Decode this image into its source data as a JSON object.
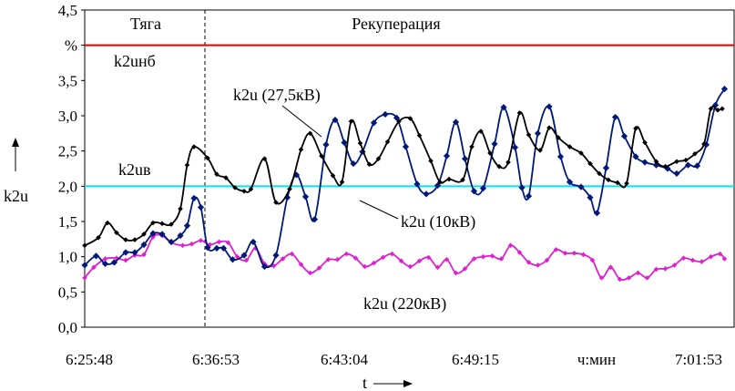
{
  "chart_data": {
    "type": "line",
    "ylabel": "k2u",
    "xlabel": "t",
    "ylim": [
      0,
      4.5
    ],
    "y_ticks": [
      "0,0",
      "0,5",
      "1,0",
      "1,5",
      "2,0",
      "2,5",
      "3,0",
      "3,5",
      "%",
      "4,5"
    ],
    "x_tick_labels": [
      "6:25:48",
      "6:36:53",
      "6:43:04",
      "6:49:15",
      "ч:мин",
      "7:01:53"
    ],
    "grid": false,
    "regions": [
      {
        "label": "Тяга"
      },
      {
        "label": "Рекуперация"
      }
    ],
    "thresholds": [
      {
        "label": "k2uнб",
        "value": 4.0,
        "color": "#e00000"
      },
      {
        "label": "k2uв",
        "value": 2.0,
        "color": "#00e5ee"
      }
    ],
    "series": [
      {
        "name": "k2u (27,5кВ)",
        "color": "#000000",
        "values": [
          [
            0.0,
            1.16
          ],
          [
            0.03,
            1.27
          ],
          [
            0.05,
            1.48
          ],
          [
            0.07,
            1.34
          ],
          [
            0.09,
            1.24
          ],
          [
            0.11,
            1.24
          ],
          [
            0.13,
            1.32
          ],
          [
            0.15,
            1.48
          ],
          [
            0.17,
            1.47
          ],
          [
            0.19,
            1.46
          ],
          [
            0.21,
            1.68
          ],
          [
            0.225,
            2.3
          ],
          [
            0.24,
            2.56
          ],
          [
            0.27,
            2.4
          ],
          [
            0.29,
            2.17
          ],
          [
            0.31,
            2.12
          ],
          [
            0.33,
            1.98
          ],
          [
            0.35,
            1.93
          ],
          [
            0.365,
            1.96
          ],
          [
            0.395,
            2.39
          ],
          [
            0.42,
            1.77
          ],
          [
            0.45,
            1.96
          ],
          [
            0.475,
            2.52
          ],
          [
            0.495,
            2.75
          ],
          [
            0.52,
            2.43
          ],
          [
            0.545,
            2.15
          ],
          [
            0.565,
            2.06
          ],
          [
            0.585,
            2.92
          ],
          [
            0.605,
            2.61
          ],
          [
            0.625,
            2.31
          ],
          [
            0.645,
            2.39
          ],
          [
            0.665,
            2.63
          ],
          [
            0.69,
            2.92
          ],
          [
            0.715,
            2.96
          ],
          [
            0.735,
            2.72
          ],
          [
            0.76,
            2.36
          ],
          [
            0.78,
            2.06
          ],
          [
            0.8,
            2.1
          ],
          [
            0.83,
            2.09
          ],
          [
            0.85,
            2.56
          ],
          [
            0.87,
            2.78
          ],
          [
            0.89,
            2.47
          ],
          [
            0.91,
            2.28
          ],
          [
            0.93,
            2.34
          ],
          [
            0.955,
            3.04
          ],
          [
            0.975,
            2.73
          ],
          [
            1.0,
            2.51
          ],
          [
            1.02,
            2.83
          ],
          [
            1.04,
            2.69
          ],
          [
            1.065,
            2.56
          ],
          [
            1.09,
            2.47
          ],
          [
            1.11,
            2.32
          ],
          [
            1.13,
            2.18
          ],
          [
            1.15,
            2.09
          ],
          [
            1.17,
            2.05
          ],
          [
            1.19,
            2.04
          ],
          [
            1.21,
            2.82
          ],
          [
            1.23,
            2.62
          ],
          [
            1.255,
            2.35
          ],
          [
            1.275,
            2.28
          ],
          [
            1.3,
            2.35
          ],
          [
            1.32,
            2.37
          ],
          [
            1.34,
            2.46
          ],
          [
            1.36,
            2.6
          ],
          [
            1.375,
            3.1
          ],
          [
            1.39,
            3.08
          ],
          [
            1.4,
            3.1
          ]
        ]
      },
      {
        "name": "k2u (10кВ)",
        "color": "#001878",
        "values": [
          [
            0.0,
            0.88
          ],
          [
            0.025,
            1.01
          ],
          [
            0.045,
            0.9
          ],
          [
            0.065,
            0.92
          ],
          [
            0.09,
            1.06
          ],
          [
            0.11,
            1.06
          ],
          [
            0.13,
            1.17
          ],
          [
            0.15,
            1.33
          ],
          [
            0.17,
            1.32
          ],
          [
            0.19,
            1.21
          ],
          [
            0.21,
            1.3
          ],
          [
            0.225,
            1.44
          ],
          [
            0.24,
            1.83
          ],
          [
            0.255,
            1.7
          ],
          [
            0.27,
            1.13
          ],
          [
            0.29,
            1.12
          ],
          [
            0.305,
            1.12
          ],
          [
            0.325,
            0.96
          ],
          [
            0.35,
            1.02
          ],
          [
            0.37,
            1.21
          ],
          [
            0.395,
            0.86
          ],
          [
            0.42,
            1.02
          ],
          [
            0.445,
            1.84
          ],
          [
            0.465,
            2.16
          ],
          [
            0.485,
            1.85
          ],
          [
            0.505,
            1.53
          ],
          [
            0.53,
            2.59
          ],
          [
            0.55,
            2.94
          ],
          [
            0.57,
            2.62
          ],
          [
            0.59,
            2.32
          ],
          [
            0.61,
            2.49
          ],
          [
            0.635,
            2.9
          ],
          [
            0.66,
            3.02
          ],
          [
            0.685,
            2.97
          ],
          [
            0.705,
            2.56
          ],
          [
            0.73,
            2.03
          ],
          [
            0.75,
            1.89
          ],
          [
            0.775,
            2.01
          ],
          [
            0.795,
            2.43
          ],
          [
            0.815,
            2.91
          ],
          [
            0.835,
            2.39
          ],
          [
            0.855,
            1.93
          ],
          [
            0.875,
            1.97
          ],
          [
            0.9,
            2.6
          ],
          [
            0.92,
            3.12
          ],
          [
            0.945,
            2.55
          ],
          [
            0.96,
            1.98
          ],
          [
            0.975,
            1.86
          ],
          [
            0.995,
            2.75
          ],
          [
            1.02,
            3.13
          ],
          [
            1.045,
            2.42
          ],
          [
            1.065,
            2.06
          ],
          [
            1.09,
            1.99
          ],
          [
            1.11,
            1.84
          ],
          [
            1.125,
            1.62
          ],
          [
            1.145,
            2.26
          ],
          [
            1.165,
            2.98
          ],
          [
            1.185,
            2.71
          ],
          [
            1.21,
            2.42
          ],
          [
            1.23,
            2.34
          ],
          [
            1.255,
            2.3
          ],
          [
            1.28,
            2.25
          ],
          [
            1.3,
            2.18
          ],
          [
            1.325,
            2.3
          ],
          [
            1.345,
            2.29
          ],
          [
            1.365,
            2.59
          ],
          [
            1.385,
            3.15
          ],
          [
            1.405,
            3.38
          ]
        ]
      },
      {
        "name": "k2u (220кВ)",
        "color": "#e020d0",
        "values": [
          [
            0.0,
            0.7
          ],
          [
            0.02,
            0.85
          ],
          [
            0.045,
            0.97
          ],
          [
            0.07,
            0.98
          ],
          [
            0.09,
            0.95
          ],
          [
            0.11,
            1.02
          ],
          [
            0.13,
            1.03
          ],
          [
            0.15,
            1.28
          ],
          [
            0.17,
            1.3
          ],
          [
            0.19,
            1.2
          ],
          [
            0.215,
            1.16
          ],
          [
            0.235,
            1.18
          ],
          [
            0.255,
            1.23
          ],
          [
            0.275,
            1.17
          ],
          [
            0.295,
            1.21
          ],
          [
            0.315,
            1.2
          ],
          [
            0.335,
            1.0
          ],
          [
            0.355,
            0.95
          ],
          [
            0.375,
            1.12
          ],
          [
            0.395,
            0.9
          ],
          [
            0.415,
            0.87
          ],
          [
            0.435,
            0.97
          ],
          [
            0.455,
            1.04
          ],
          [
            0.475,
            0.89
          ],
          [
            0.495,
            0.77
          ],
          [
            0.515,
            0.84
          ],
          [
            0.535,
            0.96
          ],
          [
            0.555,
            0.96
          ],
          [
            0.575,
            1.04
          ],
          [
            0.595,
            0.98
          ],
          [
            0.615,
            0.86
          ],
          [
            0.635,
            0.91
          ],
          [
            0.655,
            0.99
          ],
          [
            0.675,
            1.04
          ],
          [
            0.695,
            0.94
          ],
          [
            0.715,
            0.86
          ],
          [
            0.735,
            0.94
          ],
          [
            0.755,
            0.99
          ],
          [
            0.775,
            0.85
          ],
          [
            0.795,
            0.96
          ],
          [
            0.815,
            0.77
          ],
          [
            0.835,
            0.83
          ],
          [
            0.855,
            0.97
          ],
          [
            0.875,
            1.0
          ],
          [
            0.895,
            1.01
          ],
          [
            0.915,
            0.97
          ],
          [
            0.935,
            1.16
          ],
          [
            0.955,
            1.06
          ],
          [
            0.975,
            0.92
          ],
          [
            0.995,
            0.88
          ],
          [
            1.015,
            0.95
          ],
          [
            1.035,
            1.1
          ],
          [
            1.055,
            1.05
          ],
          [
            1.075,
            1.05
          ],
          [
            1.095,
            1.03
          ],
          [
            1.115,
            0.95
          ],
          [
            1.135,
            0.7
          ],
          [
            1.155,
            0.85
          ],
          [
            1.175,
            0.68
          ],
          [
            1.195,
            0.7
          ],
          [
            1.215,
            0.77
          ],
          [
            1.235,
            0.7
          ],
          [
            1.255,
            0.82
          ],
          [
            1.275,
            0.83
          ],
          [
            1.295,
            0.88
          ],
          [
            1.315,
            0.98
          ],
          [
            1.335,
            0.95
          ],
          [
            1.355,
            0.93
          ],
          [
            1.375,
            1.0
          ],
          [
            1.395,
            1.04
          ],
          [
            1.405,
            0.97
          ]
        ]
      }
    ]
  }
}
